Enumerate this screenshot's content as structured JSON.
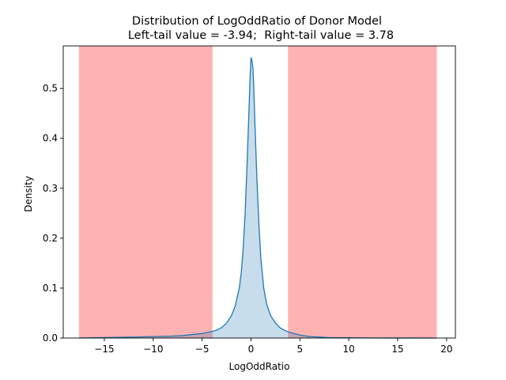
{
  "chart_data": {
    "type": "area",
    "title": "Distribution of LogOddRatio of Donor Model",
    "subtitle": "Left-tail value = -3.94;  Right-tail value = 3.78",
    "xlabel": "LogOddRatio",
    "ylabel": "Density",
    "xlim": [
      -19.2,
      20.9
    ],
    "ylim": [
      0,
      0.585
    ],
    "xticks": [
      -15,
      -10,
      -5,
      0,
      5,
      10,
      15,
      20
    ],
    "yticks": [
      0.0,
      0.1,
      0.2,
      0.3,
      0.4,
      0.5
    ],
    "xtick_labels": [
      "−15",
      "−10",
      "−5",
      "0",
      "5",
      "10",
      "15",
      "20"
    ],
    "ytick_labels": [
      "0.0",
      "0.1",
      "0.2",
      "0.3",
      "0.4",
      "0.5"
    ],
    "shaded_regions": [
      {
        "from": -17.6,
        "to": -3.94,
        "color": "#ff6666"
      },
      {
        "from": 3.78,
        "to": 19.0,
        "color": "#ff6666"
      }
    ],
    "series": [
      {
        "color": "#1f77b4",
        "fill": "#1f77b4",
        "x": [
          -17.6,
          -15,
          -12,
          -10,
          -8,
          -7,
          -6,
          -5,
          -4,
          -3.5,
          -3,
          -2.5,
          -2,
          -1.6,
          -1.2,
          -1.0,
          -0.8,
          -0.6,
          -0.4,
          -0.2,
          -0.1,
          0.0,
          0.1,
          0.2,
          0.3,
          0.4,
          0.6,
          0.8,
          1.0,
          1.3,
          1.6,
          2.0,
          2.5,
          3.0,
          3.5,
          4.0,
          5,
          6,
          7,
          8,
          10,
          12,
          15,
          19.0
        ],
        "y": [
          0.0,
          0.001,
          0.002,
          0.003,
          0.004,
          0.005,
          0.007,
          0.009,
          0.013,
          0.016,
          0.021,
          0.03,
          0.045,
          0.065,
          0.1,
          0.13,
          0.18,
          0.25,
          0.35,
          0.46,
          0.52,
          0.562,
          0.555,
          0.54,
          0.49,
          0.43,
          0.32,
          0.23,
          0.16,
          0.1,
          0.068,
          0.045,
          0.03,
          0.02,
          0.015,
          0.011,
          0.006,
          0.003,
          0.002,
          0.001,
          0.0005,
          0.0002,
          0.0001,
          0.0
        ]
      }
    ],
    "grid": false,
    "legend": false
  }
}
